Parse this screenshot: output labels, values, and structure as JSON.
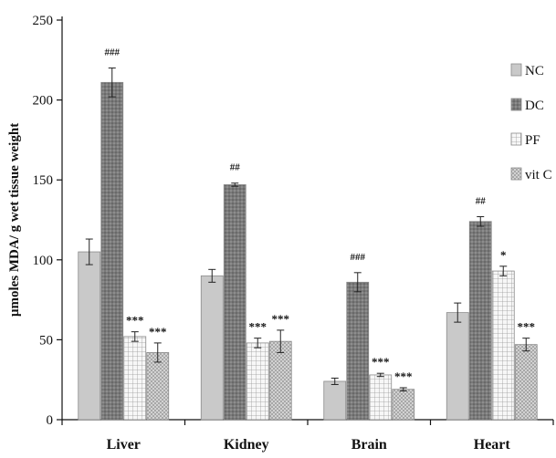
{
  "chart_data": {
    "type": "bar",
    "title": "",
    "xlabel": "",
    "ylabel": "µmoles MDA/ g wet tissue weight",
    "ylim": [
      0,
      250
    ],
    "yticks": [
      0,
      50,
      100,
      150,
      200,
      250
    ],
    "categories": [
      "Liver",
      "Kidney",
      "Brain",
      "Heart"
    ],
    "series": [
      {
        "name": "NC",
        "values": [
          105,
          90,
          24,
          67
        ],
        "errors": [
          8,
          4,
          2,
          6
        ],
        "labels": [
          "",
          "",
          "",
          ""
        ],
        "color": "#c9c9c9",
        "pattern": "solid"
      },
      {
        "name": "DC",
        "values": [
          211,
          147,
          86,
          124
        ],
        "errors": [
          9,
          1,
          6,
          3
        ],
        "labels": [
          "###",
          "##",
          "###",
          "##"
        ],
        "color": "#7a7a7a",
        "pattern": "dots"
      },
      {
        "name": "PF",
        "values": [
          52,
          48,
          28,
          93
        ],
        "errors": [
          3,
          3,
          1,
          3
        ],
        "labels": [
          "***",
          "***",
          "***",
          "*"
        ],
        "color": "#f2f2f2",
        "pattern": "grid"
      },
      {
        "name": "vit C",
        "values": [
          42,
          49,
          19,
          47
        ],
        "errors": [
          6,
          7,
          1,
          4
        ],
        "labels": [
          "***",
          "***",
          "***",
          "***"
        ],
        "color": "#d4d4d4",
        "pattern": "crosshatch"
      }
    ],
    "legend": "right",
    "grid": false
  }
}
